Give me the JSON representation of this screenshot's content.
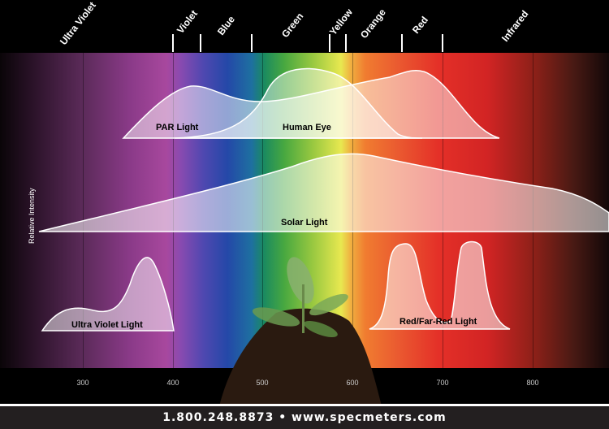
{
  "spectrum_labels": [
    "Ultra Violet",
    "Violet",
    "Blue",
    "Green",
    "Yellow",
    "Orange",
    "Red",
    "Infrared"
  ],
  "wavelength_ticks": [
    "300",
    "400",
    "500",
    "600",
    "700",
    "800"
  ],
  "y_axis_label": "Relative Intensity",
  "curves": {
    "par": "PAR Light",
    "human_eye": "Human Eye",
    "solar": "Solar Light",
    "uv": "Ultra Violet Light",
    "red_far_red": "Red/Far-Red Light"
  },
  "footer": "1.800.248.8873 • www.specmeters.com"
}
